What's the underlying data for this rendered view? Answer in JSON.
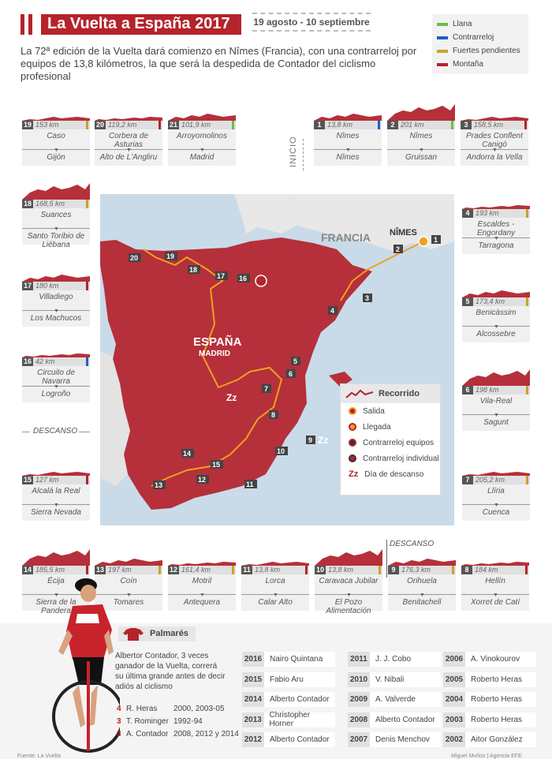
{
  "header": {
    "title": "La Vuelta a España 2017",
    "dates": "19 agosto - 10 septiembre",
    "subtitle": "La 72ª edición de la Vuelta dará comienzo en Nîmes (Francia), con una contrarreloj por equipos de 13,8 kilómetros, la que será la despedida de Contador del ciclismo profesional"
  },
  "legend": [
    {
      "label": "Llana",
      "color": "#6abf45"
    },
    {
      "label": "Contrarreloj",
      "color": "#1f5fc4"
    },
    {
      "label": "Fuertes pendientes",
      "color": "#c9a227"
    },
    {
      "label": "Montaña",
      "color": "#b5232b"
    }
  ],
  "inicio_label": "INICIO",
  "descanso_label": "DESCANSO",
  "stages": [
    {
      "n": "1",
      "km": "13,8 km",
      "start": "Nîmes",
      "end": "Nîmes",
      "type": "Contrarreloj",
      "color": "#1f5fc4"
    },
    {
      "n": "2",
      "km": "201 km",
      "start": "Nîmes",
      "end": "Gruissan",
      "type": "Llana",
      "color": "#6abf45"
    },
    {
      "n": "3",
      "km": "158,5 km",
      "start": "Prades Conflent Canigó",
      "end": "Andorra la Vella",
      "type": "Montaña",
      "color": "#b5232b"
    },
    {
      "n": "4",
      "km": "193 km",
      "start": "Escaldes -Engordany",
      "end": "Tarragona",
      "type": "Fuertes pendientes",
      "color": "#c9a227"
    },
    {
      "n": "5",
      "km": "173,4 km",
      "start": "Benicàssim",
      "end": "Alcossebre",
      "type": "Fuertes pendientes",
      "color": "#c9a227"
    },
    {
      "n": "6",
      "km": "198 km",
      "start": "Vila-Real",
      "end": "Sagunt",
      "type": "Fuertes pendientes",
      "color": "#c9a227"
    },
    {
      "n": "7",
      "km": "205,2 km",
      "start": "Llíria",
      "end": "Cuenca",
      "type": "Fuertes pendientes",
      "color": "#c9a227"
    },
    {
      "n": "8",
      "km": "184 km",
      "start": "Hellín",
      "end": "Xorret de Catí",
      "type": "Montaña",
      "color": "#b5232b"
    },
    {
      "n": "9",
      "km": "176,3 km",
      "start": "Orihuela",
      "end": "Benitachell",
      "type": "Fuertes pendientes",
      "color": "#c9a227"
    },
    {
      "n": "10",
      "km": "13,8 km",
      "start": "Caravaca Jubilar",
      "end": "El Pozo Alimentación",
      "type": "Fuertes pendientes",
      "color": "#c9a227"
    },
    {
      "n": "11",
      "km": "13,8 km",
      "start": "Lorca",
      "end": "Calar Alto",
      "type": "Montaña",
      "color": "#b5232b"
    },
    {
      "n": "12",
      "km": "161,4 km",
      "start": "Motril",
      "end": "Antequera",
      "type": "Fuertes pendientes",
      "color": "#c9a227"
    },
    {
      "n": "13",
      "km": "197 km",
      "start": "Coín",
      "end": "Tomares",
      "type": "Fuertes pendientes",
      "color": "#c9a227"
    },
    {
      "n": "14",
      "km": "185,5 km",
      "start": "Écija",
      "end": "Sierra de la Pandera",
      "type": "Montaña",
      "color": "#b5232b"
    },
    {
      "n": "15",
      "km": "127 km",
      "start": "Alcalá la Real",
      "end": "Sierra Nevada",
      "type": "Montaña",
      "color": "#b5232b"
    },
    {
      "n": "16",
      "km": "42 km",
      "start": "Circuito de Navarra",
      "end": "Logroño",
      "type": "Contrarreloj",
      "color": "#1f5fc4"
    },
    {
      "n": "17",
      "km": "180 km",
      "start": "Villadiego",
      "end": "Los Machucos",
      "type": "Montaña",
      "color": "#b5232b"
    },
    {
      "n": "18",
      "km": "168,5 km",
      "start": "Suances",
      "end": "Santo Toribio de Liébana",
      "type": "Fuertes pendientes",
      "color": "#c9a227"
    },
    {
      "n": "19",
      "km": "153 km",
      "start": "Caso",
      "end": "Gijón",
      "type": "Fuertes pendientes",
      "color": "#c9a227"
    },
    {
      "n": "20",
      "km": "119,2 km",
      "start": "Corbera de Asturias",
      "end": "Alto de L'Angliru",
      "type": "Montaña",
      "color": "#b5232b"
    },
    {
      "n": "21",
      "km": "101,9 km",
      "start": "Arroyomolinos",
      "end": "Madrid",
      "type": "Llana",
      "color": "#6abf45"
    }
  ],
  "map": {
    "francia": "FRANCIA",
    "nimes": "NÎMES",
    "espana": "ESPAÑA",
    "madrid": "MADRID",
    "route_title": "Recorrido",
    "route_legend": [
      "Salida",
      "Llegada",
      "Contrarreloj equipos",
      "Contrarreloj individual",
      "Día de descanso"
    ]
  },
  "palmares": {
    "title": "Palmarés",
    "bio": "Albertor Contador, 3 veces ganador de la Vuelta, correrá su última grande antes de decir adiós al ciclismo",
    "stats": [
      {
        "n": "4",
        "name": "R. Heras",
        "years": "2000, 2003-05"
      },
      {
        "n": "3",
        "name": "T. Rominger",
        "years": "1992-94"
      },
      {
        "n": "3",
        "name": "A. Contador",
        "years": "2008, 2012 y 2014"
      }
    ],
    "winners": [
      {
        "year": "2016",
        "name": "Nairo Quintana"
      },
      {
        "year": "2015",
        "name": "Fabio Aru"
      },
      {
        "year": "2014",
        "name": "Alberto Contador"
      },
      {
        "year": "2013",
        "name": "Christopher Horner"
      },
      {
        "year": "2012",
        "name": "Alberto Contador"
      },
      {
        "year": "2011",
        "name": "J. J. Cobo"
      },
      {
        "year": "2010",
        "name": "V. Nibali"
      },
      {
        "year": "2009",
        "name": "A. Valverde"
      },
      {
        "year": "2008",
        "name": "Alberto Contador"
      },
      {
        "year": "2007",
        "name": "Denis Menchov"
      },
      {
        "year": "2006",
        "name": "A. Vinokourov"
      },
      {
        "year": "2005",
        "name": "Roberto Heras"
      },
      {
        "year": "2004",
        "name": "Roberto Heras"
      },
      {
        "year": "2003",
        "name": "Roberto Heras"
      },
      {
        "year": "2002",
        "name": "Aitor González"
      }
    ]
  },
  "footer": {
    "source": "Fuente: La Vuelta",
    "credit": "Miguel Muñoz | Agencia EFE"
  }
}
